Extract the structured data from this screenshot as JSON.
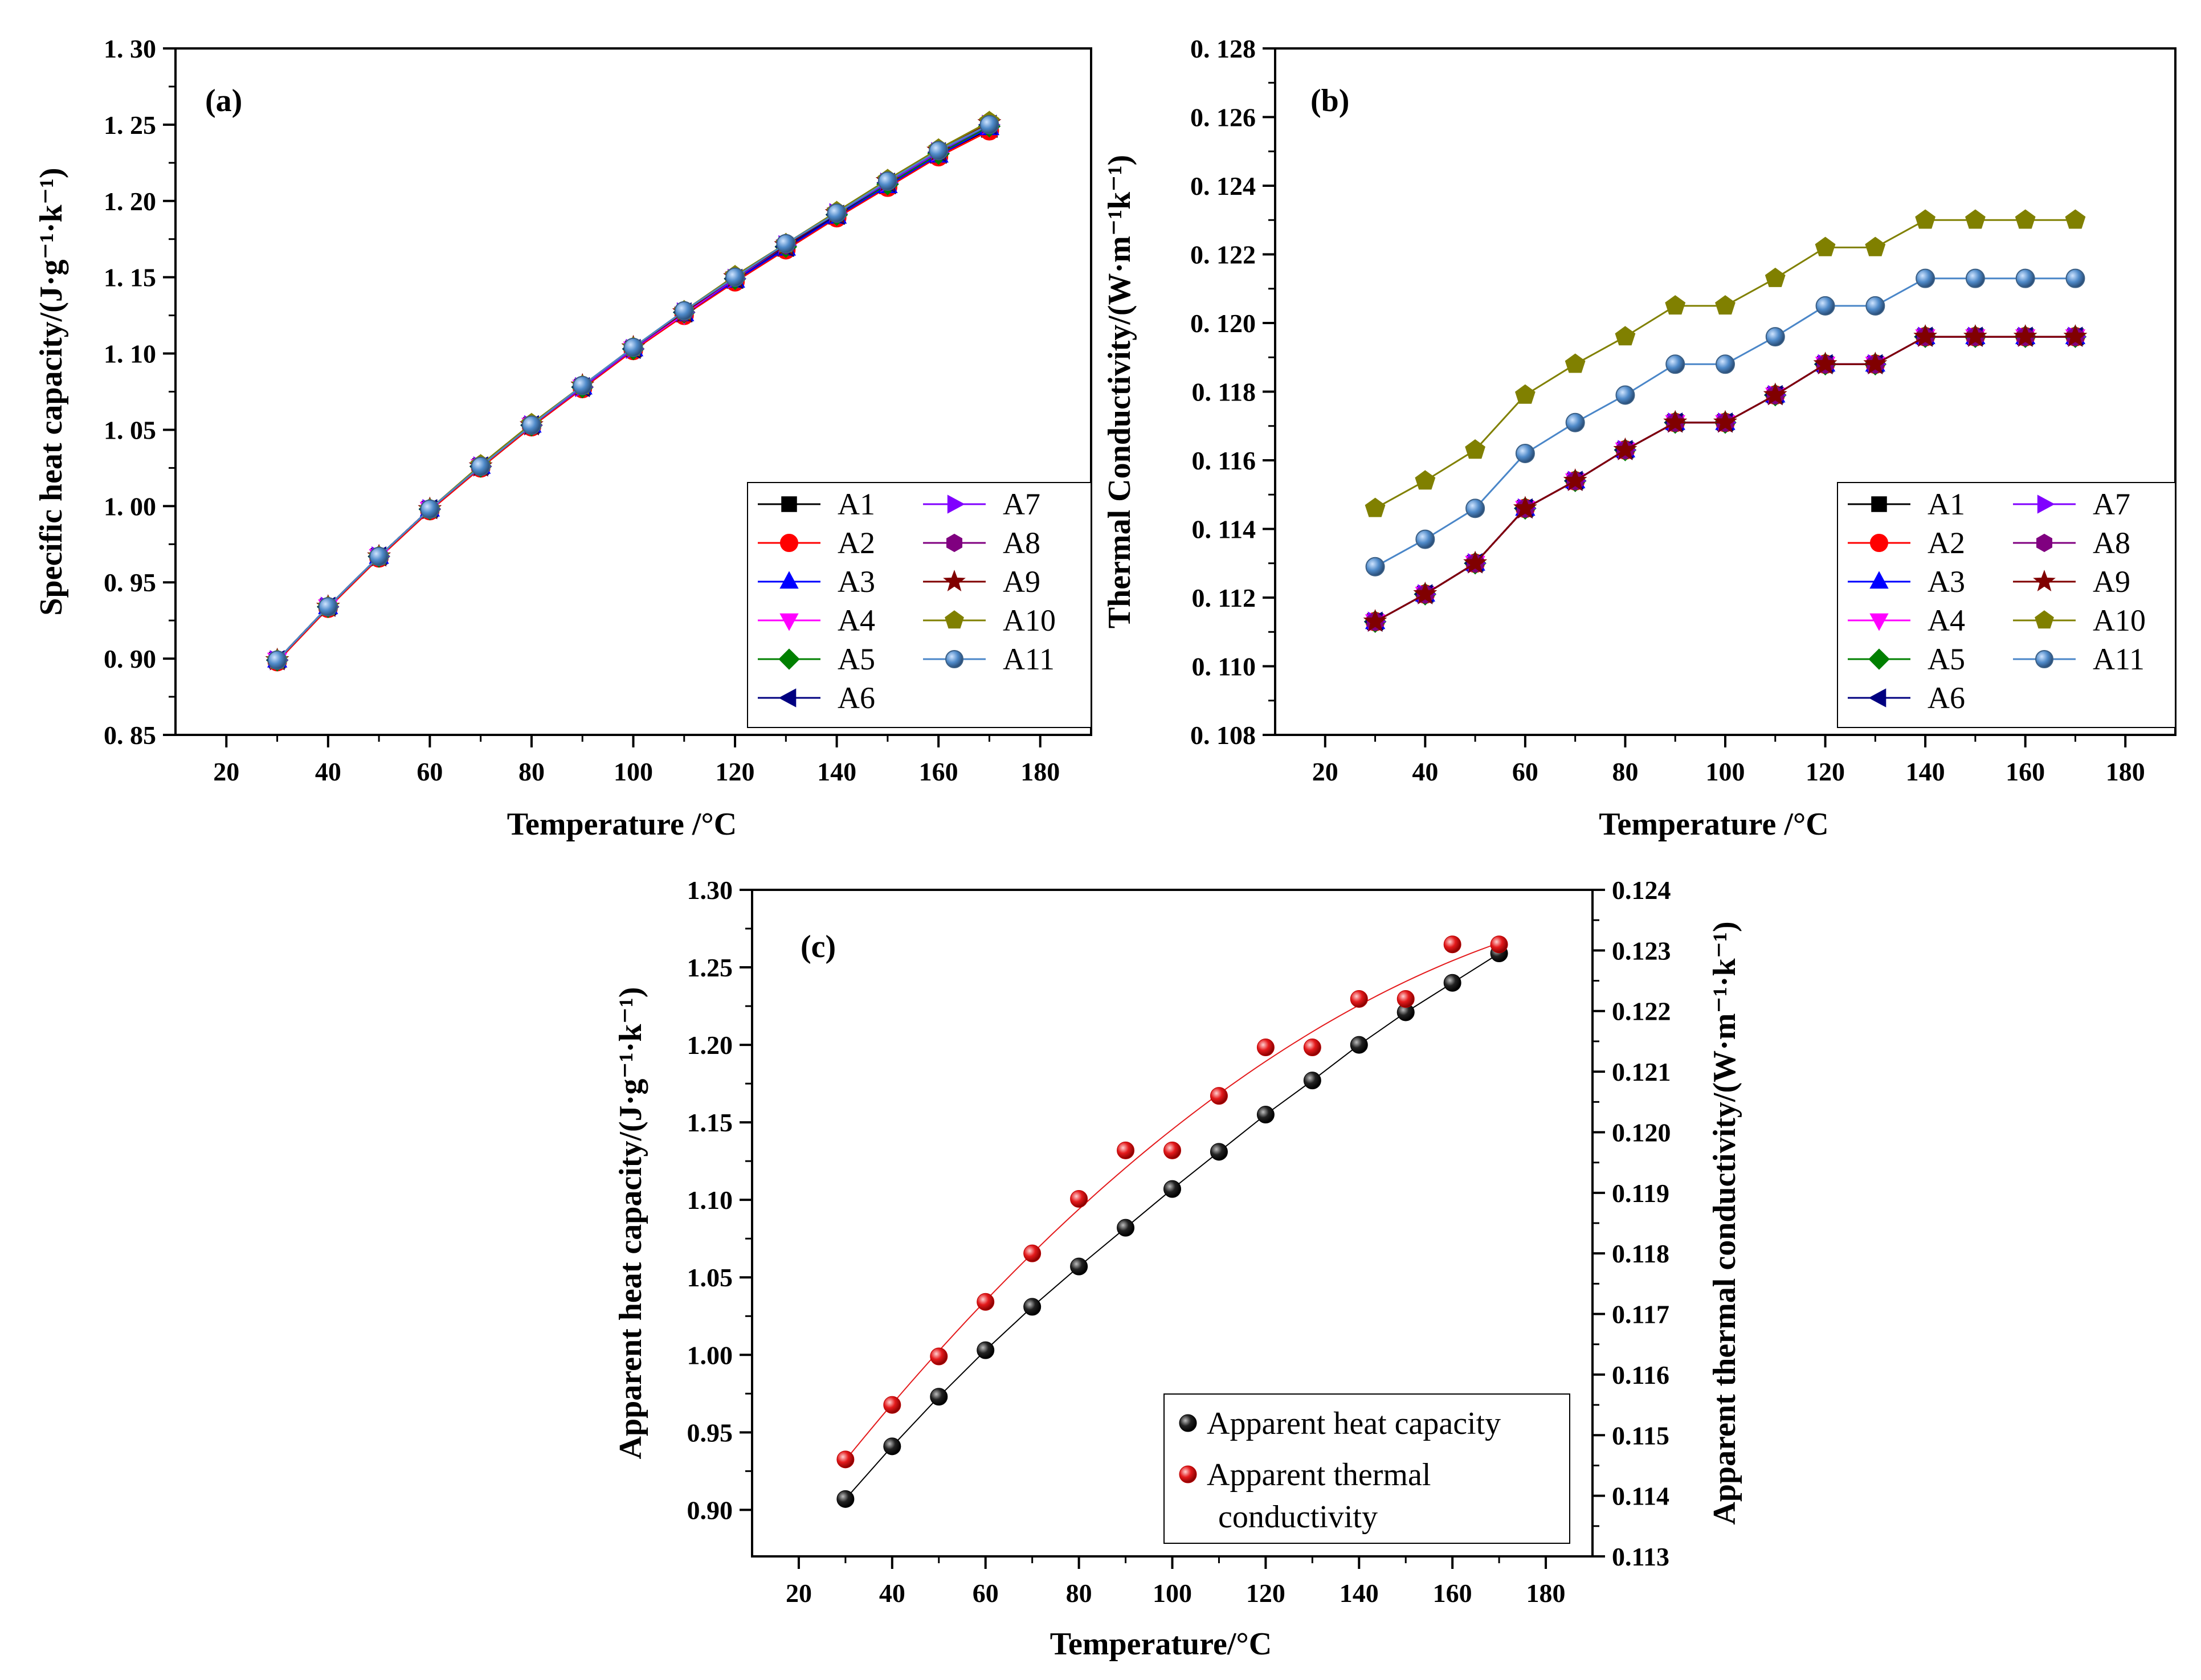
{
  "chart_data": [
    {
      "panel": "(a)",
      "type": "line",
      "xlabel": "Temperature /",
      "xunit": "°C",
      "ylabel": "Specific heat capacity/(J·g⁻¹·k⁻¹)",
      "xlim": [
        10,
        190
      ],
      "ylim": [
        0.85,
        1.3
      ],
      "xticks": [
        20,
        40,
        60,
        80,
        100,
        120,
        140,
        160,
        180
      ],
      "yticks": [
        0.85,
        0.9,
        0.95,
        1.0,
        1.05,
        1.1,
        1.15,
        1.2,
        1.25,
        1.3
      ],
      "ytick_labels": [
        "0. 85",
        "0. 90",
        "0. 95",
        "1. 00",
        "1. 05",
        "1. 10",
        "1. 15",
        "1. 20",
        "1. 25",
        "1. 30"
      ],
      "x": [
        30,
        40,
        50,
        60,
        70,
        80,
        90,
        100,
        110,
        120,
        130,
        140,
        150,
        160,
        170
      ],
      "series": [
        {
          "name": "A1",
          "color": "#000000",
          "marker": "square",
          "values": [
            0.899,
            0.934,
            0.967,
            0.998,
            1.026,
            1.053,
            1.078,
            1.103,
            1.126,
            1.148,
            1.169,
            1.19,
            1.21,
            1.23,
            1.247
          ]
        },
        {
          "name": "A2",
          "color": "#ff0000",
          "marker": "circle",
          "values": [
            0.898,
            0.933,
            0.966,
            0.997,
            1.025,
            1.052,
            1.077,
            1.102,
            1.125,
            1.147,
            1.168,
            1.189,
            1.209,
            1.229,
            1.246
          ]
        },
        {
          "name": "A3",
          "color": "#0000ff",
          "marker": "triangle-up",
          "values": [
            0.899,
            0.934,
            0.967,
            0.998,
            1.026,
            1.053,
            1.078,
            1.103,
            1.126,
            1.148,
            1.169,
            1.19,
            1.21,
            1.23,
            1.248
          ]
        },
        {
          "name": "A4",
          "color": "#ff00ff",
          "marker": "triangle-down",
          "values": [
            0.899,
            0.934,
            0.967,
            0.998,
            1.026,
            1.053,
            1.078,
            1.103,
            1.126,
            1.149,
            1.17,
            1.191,
            1.211,
            1.231,
            1.249
          ]
        },
        {
          "name": "A5",
          "color": "#008000",
          "marker": "diamond",
          "values": [
            0.899,
            0.934,
            0.967,
            0.998,
            1.026,
            1.053,
            1.078,
            1.103,
            1.127,
            1.149,
            1.17,
            1.191,
            1.211,
            1.231,
            1.249
          ]
        },
        {
          "name": "A6",
          "color": "#000080",
          "marker": "triangle-left",
          "values": [
            0.899,
            0.934,
            0.967,
            0.998,
            1.026,
            1.053,
            1.078,
            1.103,
            1.127,
            1.149,
            1.17,
            1.191,
            1.212,
            1.232,
            1.25
          ]
        },
        {
          "name": "A7",
          "color": "#8000ff",
          "marker": "triangle-right",
          "values": [
            0.899,
            0.934,
            0.967,
            0.998,
            1.026,
            1.053,
            1.078,
            1.103,
            1.127,
            1.149,
            1.171,
            1.192,
            1.212,
            1.232,
            1.25
          ]
        },
        {
          "name": "A8",
          "color": "#800080",
          "marker": "hexagon",
          "values": [
            0.899,
            0.934,
            0.967,
            0.998,
            1.026,
            1.053,
            1.079,
            1.104,
            1.127,
            1.15,
            1.171,
            1.192,
            1.213,
            1.233,
            1.251
          ]
        },
        {
          "name": "A9",
          "color": "#800000",
          "marker": "star",
          "values": [
            0.899,
            0.934,
            0.967,
            0.998,
            1.026,
            1.053,
            1.079,
            1.104,
            1.127,
            1.15,
            1.171,
            1.192,
            1.213,
            1.233,
            1.251
          ]
        },
        {
          "name": "A10",
          "color": "#808000",
          "marker": "pentagon",
          "values": [
            0.899,
            0.934,
            0.967,
            0.998,
            1.027,
            1.054,
            1.079,
            1.104,
            1.128,
            1.151,
            1.172,
            1.193,
            1.214,
            1.234,
            1.252
          ]
        },
        {
          "name": "A11",
          "color": "#4a86c8",
          "marker": "sphere",
          "values": [
            0.899,
            0.934,
            0.967,
            0.998,
            1.026,
            1.053,
            1.079,
            1.104,
            1.128,
            1.15,
            1.172,
            1.192,
            1.213,
            1.233,
            1.25
          ]
        }
      ]
    },
    {
      "panel": "(b)",
      "type": "line",
      "xlabel": "Temperature /",
      "xunit": "°C",
      "ylabel": "Thermal Conductivity/(W·m⁻¹k⁻¹)",
      "xlim": [
        10,
        190
      ],
      "ylim": [
        0.108,
        0.128
      ],
      "xticks": [
        20,
        40,
        60,
        80,
        100,
        120,
        140,
        160,
        180
      ],
      "yticks": [
        0.108,
        0.11,
        0.112,
        0.114,
        0.116,
        0.118,
        0.12,
        0.122,
        0.124,
        0.126,
        0.128
      ],
      "ytick_labels": [
        "0. 108",
        "0. 110",
        "0. 112",
        "0. 114",
        "0. 116",
        "0. 118",
        "0. 120",
        "0. 122",
        "0. 124",
        "0. 126",
        "0. 128"
      ],
      "x": [
        30,
        40,
        50,
        60,
        70,
        80,
        90,
        100,
        110,
        120,
        130,
        140,
        150,
        160,
        170
      ],
      "series": [
        {
          "name": "A1",
          "color": "#000000",
          "marker": "square",
          "values": [
            0.1113,
            0.1121,
            0.113,
            0.1146,
            0.1154,
            0.1163,
            0.1171,
            0.1171,
            0.1179,
            0.1188,
            0.1188,
            0.1196,
            0.1196,
            0.1196,
            0.1196
          ]
        },
        {
          "name": "A2",
          "color": "#ff0000",
          "marker": "circle",
          "values": [
            0.1113,
            0.1121,
            0.113,
            0.1146,
            0.1154,
            0.1163,
            0.1171,
            0.1171,
            0.1179,
            0.1188,
            0.1188,
            0.1196,
            0.1196,
            0.1196,
            0.1196
          ]
        },
        {
          "name": "A3",
          "color": "#0000ff",
          "marker": "triangle-up",
          "values": [
            0.1113,
            0.1121,
            0.113,
            0.1146,
            0.1154,
            0.1163,
            0.1171,
            0.1171,
            0.1179,
            0.1188,
            0.1188,
            0.1196,
            0.1196,
            0.1196,
            0.1196
          ]
        },
        {
          "name": "A4",
          "color": "#ff00ff",
          "marker": "triangle-down",
          "values": [
            0.1113,
            0.1121,
            0.113,
            0.1146,
            0.1154,
            0.1163,
            0.1171,
            0.1171,
            0.1179,
            0.1188,
            0.1188,
            0.1196,
            0.1196,
            0.1196,
            0.1196
          ]
        },
        {
          "name": "A5",
          "color": "#008000",
          "marker": "diamond",
          "values": [
            0.1113,
            0.1121,
            0.113,
            0.1146,
            0.1154,
            0.1163,
            0.1171,
            0.1171,
            0.1179,
            0.1188,
            0.1188,
            0.1196,
            0.1196,
            0.1196,
            0.1196
          ]
        },
        {
          "name": "A6",
          "color": "#000080",
          "marker": "triangle-left",
          "values": [
            0.1113,
            0.1121,
            0.113,
            0.1146,
            0.1154,
            0.1163,
            0.1171,
            0.1171,
            0.1179,
            0.1188,
            0.1188,
            0.1196,
            0.1196,
            0.1196,
            0.1196
          ]
        },
        {
          "name": "A7",
          "color": "#8000ff",
          "marker": "triangle-right",
          "values": [
            0.1113,
            0.1121,
            0.113,
            0.1146,
            0.1154,
            0.1163,
            0.1171,
            0.1171,
            0.1179,
            0.1188,
            0.1188,
            0.1196,
            0.1196,
            0.1196,
            0.1196
          ]
        },
        {
          "name": "A8",
          "color": "#800080",
          "marker": "hexagon",
          "values": [
            0.1113,
            0.1121,
            0.113,
            0.1146,
            0.1154,
            0.1163,
            0.1171,
            0.1171,
            0.1179,
            0.1188,
            0.1188,
            0.1196,
            0.1196,
            0.1196,
            0.1196
          ]
        },
        {
          "name": "A9",
          "color": "#800000",
          "marker": "star",
          "values": [
            0.1113,
            0.1121,
            0.113,
            0.1146,
            0.1154,
            0.1163,
            0.1171,
            0.1171,
            0.1179,
            0.1188,
            0.1188,
            0.1196,
            0.1196,
            0.1196,
            0.1196
          ]
        },
        {
          "name": "A10",
          "color": "#808000",
          "marker": "pentagon",
          "values": [
            0.1146,
            0.1154,
            0.1163,
            0.1179,
            0.1188,
            0.1196,
            0.1205,
            0.1205,
            0.1213,
            0.1222,
            0.1222,
            0.123,
            0.123,
            0.123,
            0.123
          ]
        },
        {
          "name": "A11",
          "color": "#4a86c8",
          "marker": "sphere",
          "values": [
            0.1129,
            0.1137,
            0.1146,
            0.1162,
            0.1171,
            0.1179,
            0.1188,
            0.1188,
            0.1196,
            0.1205,
            0.1205,
            0.1213,
            0.1213,
            0.1213,
            0.1213
          ]
        }
      ]
    },
    {
      "panel": "(c)",
      "type": "scatter",
      "xlabel": "Temperature/",
      "xunit": "°C",
      "ylabel": "Apparent heat capacity/(J·g⁻¹·k⁻¹)",
      "ylabel_right": "Apparent thermal conductivity/(W·m⁻¹·k⁻¹)",
      "xlim": [
        10,
        190
      ],
      "ylim": [
        0.87,
        1.3
      ],
      "ylim_right": [
        0.113,
        0.124
      ],
      "xticks": [
        20,
        40,
        60,
        80,
        100,
        120,
        140,
        160,
        180
      ],
      "yticks": [
        0.9,
        0.95,
        1.0,
        1.05,
        1.1,
        1.15,
        1.2,
        1.25,
        1.3
      ],
      "ytick_labels": [
        "0.90",
        "0.95",
        "1.00",
        "1.05",
        "1.10",
        "1.15",
        "1.20",
        "1.25",
        "1.30"
      ],
      "yticks_right": [
        0.113,
        0.114,
        0.115,
        0.116,
        0.117,
        0.118,
        0.119,
        0.12,
        0.121,
        0.122,
        0.123,
        0.124
      ],
      "ytick_labels_right": [
        "0.113",
        "0.114",
        "0.115",
        "0.116",
        "0.117",
        "0.118",
        "0.119",
        "0.120",
        "0.121",
        "0.122",
        "0.123",
        "0.124"
      ],
      "x": [
        30,
        40,
        50,
        60,
        70,
        80,
        90,
        100,
        110,
        120,
        130,
        140,
        150,
        160,
        170
      ],
      "series": [
        {
          "name": "Apparent heat capacity",
          "axis": "left",
          "color": "#000000",
          "values": [
            0.907,
            0.941,
            0.973,
            1.003,
            1.031,
            1.057,
            1.082,
            1.107,
            1.131,
            1.155,
            1.177,
            1.2,
            1.221,
            1.24,
            1.259
          ]
        },
        {
          "name": "Apparent thermal conductivity",
          "axis": "right",
          "color": "#e41a1c",
          "values": [
            0.1146,
            0.1155,
            0.1163,
            0.1172,
            0.118,
            0.1189,
            0.1197,
            0.1197,
            0.1206,
            0.1214,
            0.1214,
            0.1222,
            0.1222,
            0.1231,
            0.1231
          ]
        }
      ]
    }
  ]
}
